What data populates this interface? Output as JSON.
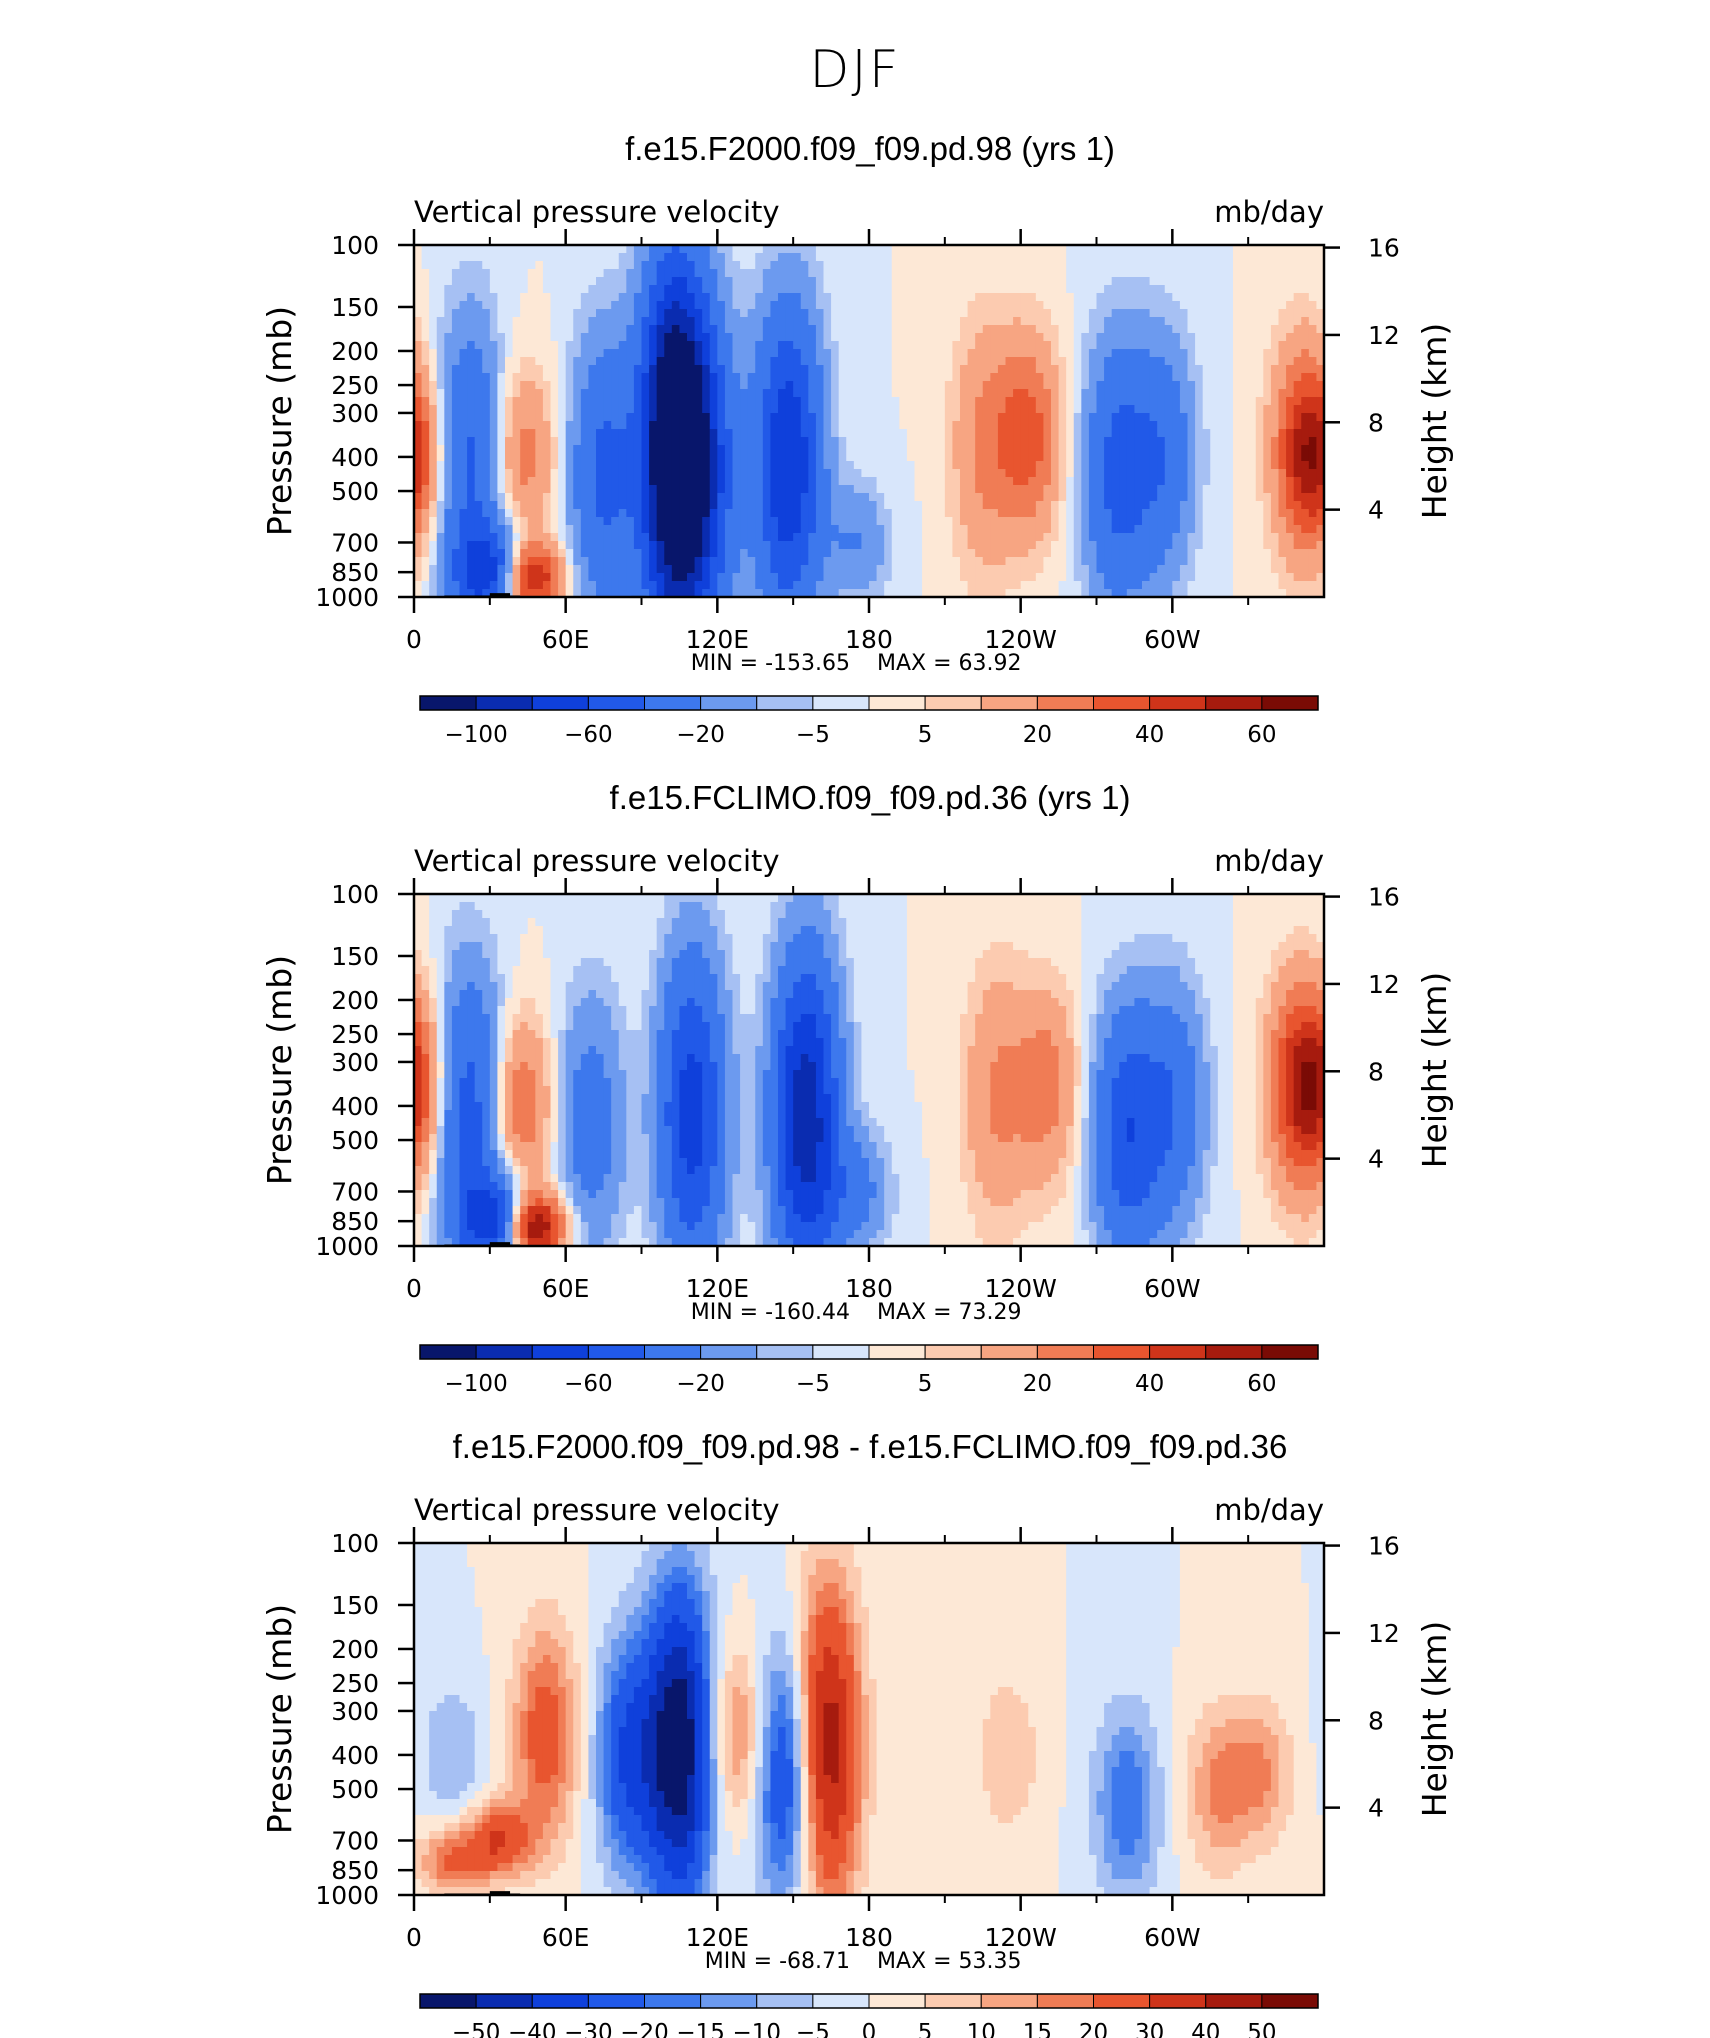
{
  "figure_title": "DJF",
  "chart_data": [
    {
      "type": "heatmap",
      "title": "f.e15.F2000.f09_f09.pd.98 (yrs 1)",
      "left_label": "Vertical pressure velocity",
      "right_label": "mb/day",
      "ylabel": "Pressure (mb)",
      "ylabel_right": "Height (km)",
      "x_ticks": [
        "0",
        "60E",
        "120E",
        "180",
        "120W",
        "60W"
      ],
      "y_ticks": [
        "100",
        "150",
        "200",
        "250",
        "300",
        "400",
        "500",
        "700",
        "850",
        "1000"
      ],
      "y_ticks_right": [
        "16",
        "12",
        "8",
        "4"
      ],
      "min_label": "MIN = -153.65",
      "max_label": "MAX = 63.92",
      "min": -153.65,
      "max": 63.92,
      "colorbar_labels": [
        "-100",
        "-60",
        "-20",
        "-5",
        "5",
        "20",
        "40",
        "60"
      ],
      "colorbar_levels": [
        -120,
        -100,
        -80,
        -60,
        -40,
        -20,
        -10,
        -5,
        0,
        5,
        10,
        20,
        30,
        40,
        50,
        60
      ],
      "features": [
        {
          "lon": 0,
          "center_mb": 400,
          "top_mb": 250,
          "bottom_mb": 600,
          "amp": 30
        },
        {
          "lon": 22,
          "center_mb": 420,
          "top_mb": 180,
          "bottom_mb": 950,
          "amp": -45
        },
        {
          "lon": 30,
          "center_mb": 850,
          "top_mb": 600,
          "bottom_mb": 1000,
          "amp": -70
        },
        {
          "lon": 43,
          "center_mb": 400,
          "top_mb": 250,
          "bottom_mb": 700,
          "amp": 25
        },
        {
          "lon": 45,
          "center_mb": 880,
          "top_mb": 750,
          "bottom_mb": 1000,
          "amp": 60
        },
        {
          "lon": 75,
          "center_mb": 450,
          "top_mb": 180,
          "bottom_mb": 900,
          "amp": -45
        },
        {
          "lon": 103,
          "center_mb": 380,
          "top_mb": 120,
          "bottom_mb": 950,
          "amp": -150
        },
        {
          "lon": 115,
          "center_mb": 450,
          "top_mb": 150,
          "bottom_mb": 950,
          "amp": -55
        },
        {
          "lon": 148,
          "center_mb": 420,
          "top_mb": 150,
          "bottom_mb": 900,
          "amp": -80
        },
        {
          "lon": 175,
          "center_mb": 700,
          "top_mb": 450,
          "bottom_mb": 900,
          "amp": -20
        },
        {
          "lon": 225,
          "center_mb": 380,
          "top_mb": 180,
          "bottom_mb": 850,
          "amp": 20
        },
        {
          "lon": 243,
          "center_mb": 350,
          "top_mb": 200,
          "bottom_mb": 650,
          "amp": 35
        },
        {
          "lon": 278,
          "center_mb": 450,
          "top_mb": 200,
          "bottom_mb": 950,
          "amp": -45
        },
        {
          "lon": 296,
          "center_mb": 400,
          "top_mb": 230,
          "bottom_mb": 950,
          "amp": -35
        },
        {
          "lon": 352,
          "center_mb": 380,
          "top_mb": 180,
          "bottom_mb": 650,
          "amp": 40
        }
      ]
    },
    {
      "type": "heatmap",
      "title": "f.e15.FCLIMO.f09_f09.pd.36 (yrs 1)",
      "left_label": "Vertical pressure velocity",
      "right_label": "mb/day",
      "ylabel": "Pressure (mb)",
      "ylabel_right": "Height (km)",
      "x_ticks": [
        "0",
        "60E",
        "120E",
        "180",
        "120W",
        "60W"
      ],
      "y_ticks": [
        "100",
        "150",
        "200",
        "250",
        "300",
        "400",
        "500",
        "700",
        "850",
        "1000"
      ],
      "y_ticks_right": [
        "16",
        "12",
        "8",
        "4"
      ],
      "min_label": "MIN = -160.44",
      "max_label": "MAX = 73.29",
      "min": -160.44,
      "max": 73.29,
      "colorbar_labels": [
        "-100",
        "-60",
        "-20",
        "-5",
        "5",
        "20",
        "40",
        "60"
      ],
      "colorbar_levels": [
        -120,
        -100,
        -80,
        -60,
        -40,
        -20,
        -10,
        -5,
        0,
        5,
        10,
        20,
        30,
        40,
        50,
        60
      ],
      "features": [
        {
          "lon": 0,
          "center_mb": 350,
          "top_mb": 220,
          "bottom_mb": 600,
          "amp": 35
        },
        {
          "lon": 22,
          "center_mb": 420,
          "top_mb": 180,
          "bottom_mb": 950,
          "amp": -50
        },
        {
          "lon": 32,
          "center_mb": 850,
          "top_mb": 600,
          "bottom_mb": 1000,
          "amp": -70
        },
        {
          "lon": 42,
          "center_mb": 400,
          "top_mb": 250,
          "bottom_mb": 700,
          "amp": 30
        },
        {
          "lon": 47,
          "center_mb": 880,
          "top_mb": 750,
          "bottom_mb": 1000,
          "amp": 70
        },
        {
          "lon": 70,
          "center_mb": 450,
          "top_mb": 200,
          "bottom_mb": 900,
          "amp": -30
        },
        {
          "lon": 110,
          "center_mb": 420,
          "top_mb": 150,
          "bottom_mb": 950,
          "amp": -70
        },
        {
          "lon": 155,
          "center_mb": 430,
          "top_mb": 150,
          "bottom_mb": 950,
          "amp": -95
        },
        {
          "lon": 175,
          "center_mb": 700,
          "top_mb": 450,
          "bottom_mb": 900,
          "amp": -25
        },
        {
          "lon": 230,
          "center_mb": 380,
          "top_mb": 180,
          "bottom_mb": 850,
          "amp": 20
        },
        {
          "lon": 250,
          "center_mb": 350,
          "top_mb": 200,
          "bottom_mb": 650,
          "amp": 25
        },
        {
          "lon": 282,
          "center_mb": 480,
          "top_mb": 220,
          "bottom_mb": 950,
          "amp": -55
        },
        {
          "lon": 300,
          "center_mb": 400,
          "top_mb": 230,
          "bottom_mb": 950,
          "amp": -35
        },
        {
          "lon": 350,
          "center_mb": 350,
          "top_mb": 180,
          "bottom_mb": 650,
          "amp": 40
        }
      ]
    },
    {
      "type": "heatmap",
      "title": "f.e15.F2000.f09_f09.pd.98 - f.e15.FCLIMO.f09_f09.pd.36",
      "left_label": "Vertical pressure velocity",
      "right_label": "mb/day",
      "ylabel": "Pressure (mb)",
      "ylabel_right": "Height (km)",
      "x_ticks": [
        "0",
        "60E",
        "120E",
        "180",
        "120W",
        "60W"
      ],
      "y_ticks": [
        "100",
        "150",
        "200",
        "250",
        "300",
        "400",
        "500",
        "700",
        "850",
        "1000"
      ],
      "y_ticks_right": [
        "16",
        "12",
        "8",
        "4"
      ],
      "min_label": "MIN = -68.71",
      "max_label": "MAX = 53.35",
      "min": -68.71,
      "max": 53.35,
      "colorbar_labels": [
        "-50",
        "-40",
        "-30",
        "-20",
        "-15",
        "-10",
        "-5",
        "0",
        "5",
        "10",
        "15",
        "20",
        "30",
        "40",
        "50"
      ],
      "colorbar_levels": [
        -60,
        -50,
        -40,
        -30,
        -20,
        -15,
        -10,
        -5,
        0,
        5,
        10,
        15,
        20,
        30,
        40,
        50
      ],
      "features": [
        {
          "lon": 14,
          "center_mb": 800,
          "top_mb": 650,
          "bottom_mb": 950,
          "amp": 20
        },
        {
          "lon": 15,
          "center_mb": 400,
          "top_mb": 250,
          "bottom_mb": 600,
          "amp": -10
        },
        {
          "lon": 33,
          "center_mb": 700,
          "top_mb": 550,
          "bottom_mb": 850,
          "amp": 30
        },
        {
          "lon": 52,
          "center_mb": 350,
          "top_mb": 180,
          "bottom_mb": 650,
          "amp": 25
        },
        {
          "lon": 85,
          "center_mb": 400,
          "top_mb": 200,
          "bottom_mb": 800,
          "amp": -30
        },
        {
          "lon": 105,
          "center_mb": 380,
          "top_mb": 150,
          "bottom_mb": 950,
          "amp": -60
        },
        {
          "lon": 128,
          "center_mb": 350,
          "top_mb": 200,
          "bottom_mb": 600,
          "amp": 18
        },
        {
          "lon": 148,
          "center_mb": 450,
          "top_mb": 200,
          "bottom_mb": 950,
          "amp": -35
        },
        {
          "lon": 163,
          "center_mb": 380,
          "top_mb": 150,
          "bottom_mb": 950,
          "amp": 50
        },
        {
          "lon": 235,
          "center_mb": 400,
          "top_mb": 250,
          "bottom_mb": 650,
          "amp": 10
        },
        {
          "lon": 282,
          "center_mb": 550,
          "top_mb": 300,
          "bottom_mb": 950,
          "amp": -20
        },
        {
          "lon": 318,
          "center_mb": 500,
          "top_mb": 300,
          "bottom_mb": 800,
          "amp": 15
        },
        {
          "lon": 335,
          "center_mb": 450,
          "top_mb": 300,
          "bottom_mb": 700,
          "amp": 15
        }
      ]
    }
  ],
  "colors": {
    "palette": [
      "#08166b",
      "#0a2cb0",
      "#0f40db",
      "#2159e8",
      "#3d78ed",
      "#6c9aef",
      "#a6c0f3",
      "#d8e6fb",
      "#fde8d6",
      "#fccbb0",
      "#f7a582",
      "#f07c55",
      "#e8552f",
      "#cf341a",
      "#a61b0e",
      "#7a0b05"
    ],
    "topography": "#000000"
  }
}
